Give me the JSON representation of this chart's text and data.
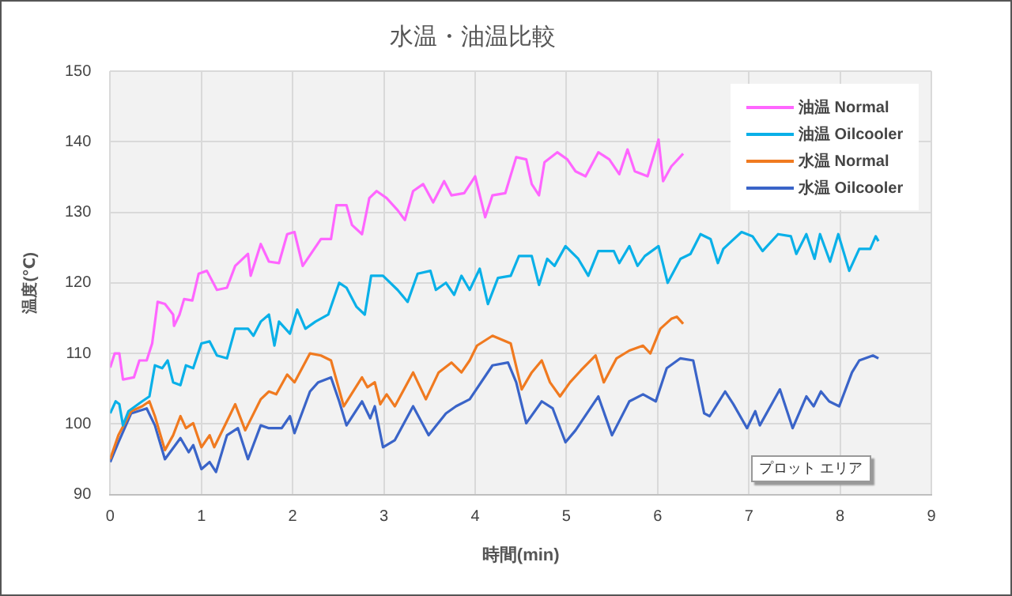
{
  "chart_data": {
    "type": "line",
    "title": "水温・油温比較",
    "xlabel": "時間(min)",
    "ylabel": "温度(℃)",
    "xlim": [
      0,
      9
    ],
    "xticks": [
      0,
      1,
      2,
      3,
      4,
      5,
      6,
      7,
      8,
      9
    ],
    "ylim": [
      90,
      150
    ],
    "yticks": [
      90,
      100,
      110,
      120,
      130,
      140,
      150
    ],
    "grid": true,
    "legend": "top right",
    "marker": "none",
    "line_style": "solid",
    "annotations": [
      "プロット エリア"
    ],
    "series": [
      {
        "name": "油温 Normal",
        "color": "#ff66ff",
        "x": [
          0,
          0.05,
          0.1,
          0.14,
          0.26,
          0.32,
          0.4,
          0.46,
          0.52,
          0.6,
          0.69,
          0.7,
          0.76,
          0.81,
          0.9,
          0.97,
          1.06,
          1.17,
          1.28,
          1.37,
          1.51,
          1.54,
          1.65,
          1.74,
          1.85,
          1.94,
          2.02,
          2.11,
          2.31,
          2.42,
          2.48,
          2.59,
          2.65,
          2.76,
          2.84,
          2.92,
          3.03,
          3.15,
          3.23,
          3.32,
          3.43,
          3.54,
          3.66,
          3.74,
          3.88,
          4.0,
          4.11,
          4.19,
          4.33,
          4.45,
          4.56,
          4.62,
          4.7,
          4.76,
          4.9,
          5.01,
          5.1,
          5.21,
          5.35,
          5.47,
          5.58,
          5.67,
          5.75,
          5.89,
          6.01,
          6.06,
          6.15,
          6.28
        ],
        "values": [
          108,
          110,
          110,
          106.3,
          106.6,
          109,
          109,
          111.4,
          117.3,
          117,
          115.5,
          113.9,
          115.5,
          117.7,
          117.5,
          121.3,
          121.7,
          119,
          119.3,
          122.4,
          124.1,
          121,
          125.5,
          123,
          122.8,
          126.9,
          127.2,
          122.4,
          126.2,
          126.2,
          131,
          131,
          128.2,
          126.9,
          132,
          133,
          132,
          130.3,
          128.9,
          133,
          134,
          131.4,
          134.4,
          132.4,
          132.7,
          135.1,
          129.3,
          132.4,
          132.7,
          137.8,
          137.5,
          134,
          132.4,
          137.1,
          138.5,
          137.5,
          135.8,
          135.1,
          138.5,
          137.5,
          135.4,
          138.9,
          135.8,
          135.1,
          140.3,
          134.4,
          136.5,
          138.3
        ]
      },
      {
        "name": "油温 Oilcooler",
        "color": "#0ab0e8",
        "x": [
          0,
          0.06,
          0.1,
          0.14,
          0.2,
          0.35,
          0.43,
          0.49,
          0.57,
          0.63,
          0.69,
          0.77,
          0.83,
          0.91,
          1.0,
          1.09,
          1.17,
          1.28,
          1.37,
          1.51,
          1.57,
          1.65,
          1.74,
          1.8,
          1.85,
          1.97,
          2.05,
          2.14,
          2.25,
          2.39,
          2.51,
          2.59,
          2.7,
          2.79,
          2.86,
          2.99,
          3.15,
          3.26,
          3.37,
          3.51,
          3.57,
          3.68,
          3.77,
          3.85,
          3.94,
          4.05,
          4.14,
          4.25,
          4.39,
          4.48,
          4.62,
          4.7,
          4.79,
          4.87,
          4.99,
          5.13,
          5.24,
          5.35,
          5.52,
          5.58,
          5.69,
          5.78,
          5.86,
          6.01,
          6.11,
          6.25,
          6.36,
          6.47,
          6.58,
          6.66,
          6.72,
          6.81,
          6.92,
          7.04,
          7.15,
          7.32,
          7.46,
          7.52,
          7.63,
          7.72,
          7.78,
          7.89,
          7.98,
          8.1,
          8.21,
          8.33,
          8.39,
          8.42
        ],
        "values": [
          101.5,
          103.2,
          102.8,
          99.8,
          101.8,
          103.2,
          103.9,
          108.3,
          107.9,
          109,
          105.9,
          105.5,
          108.3,
          107.9,
          111.4,
          111.7,
          109.7,
          109.3,
          113.5,
          113.5,
          112.5,
          114.5,
          115.5,
          111.1,
          114.5,
          112.8,
          116.2,
          113.5,
          114.5,
          115.5,
          120,
          119.3,
          116.6,
          115.5,
          121,
          121,
          119,
          117.3,
          121.3,
          121.7,
          119,
          120,
          118.3,
          121,
          119,
          122,
          117,
          120.7,
          121,
          123.8,
          123.8,
          119.7,
          123.4,
          122.4,
          125.2,
          123.4,
          121,
          124.5,
          124.5,
          122.8,
          125.2,
          122.4,
          123.8,
          125.2,
          120,
          123.4,
          124.1,
          126.9,
          126.2,
          122.8,
          124.8,
          125.9,
          127.2,
          126.6,
          124.5,
          126.9,
          126.6,
          124.1,
          126.9,
          123.4,
          126.9,
          123,
          126.9,
          121.7,
          124.8,
          124.8,
          126.6,
          125.9
        ]
      },
      {
        "name": "水温 Normal",
        "color": "#f07a20",
        "x": [
          0,
          0.09,
          0.23,
          0.35,
          0.43,
          0.49,
          0.6,
          0.69,
          0.77,
          0.83,
          0.91,
          1.0,
          1.09,
          1.14,
          1.28,
          1.37,
          1.48,
          1.65,
          1.74,
          1.82,
          1.94,
          2.02,
          2.19,
          2.31,
          2.42,
          2.56,
          2.76,
          2.82,
          2.9,
          2.96,
          3.03,
          3.12,
          3.32,
          3.46,
          3.6,
          3.74,
          3.85,
          3.94,
          4.02,
          4.19,
          4.39,
          4.51,
          4.62,
          4.73,
          4.82,
          4.93,
          5.04,
          5.16,
          5.32,
          5.41,
          5.55,
          5.69,
          5.84,
          5.92,
          6.03,
          6.15,
          6.21,
          6.28
        ],
        "values": [
          95,
          98.4,
          101.8,
          102.5,
          103.2,
          101.1,
          96.3,
          98.4,
          101.1,
          99.4,
          100.1,
          96.7,
          98.4,
          96.7,
          100.4,
          102.8,
          99.1,
          103.5,
          104.6,
          104.2,
          107,
          105.9,
          110,
          109.7,
          109,
          102.5,
          106.6,
          105.2,
          105.9,
          102.8,
          104.2,
          102.5,
          107.3,
          103.5,
          107.3,
          108.7,
          107.3,
          109,
          111.1,
          112.5,
          111.4,
          104.9,
          107.3,
          109,
          105.9,
          103.9,
          105.9,
          107.6,
          109.7,
          105.9,
          109.3,
          110.4,
          111.1,
          110,
          113.5,
          114.9,
          115.2,
          114.2
        ]
      },
      {
        "name": "水温 Oilcooler",
        "color": "#3a64c8",
        "x": [
          0,
          0.09,
          0.23,
          0.4,
          0.49,
          0.6,
          0.77,
          0.86,
          0.91,
          1.0,
          1.09,
          1.16,
          1.28,
          1.4,
          1.51,
          1.65,
          1.74,
          1.88,
          1.97,
          2.02,
          2.19,
          2.28,
          2.42,
          2.51,
          2.59,
          2.76,
          2.85,
          2.9,
          2.99,
          3.12,
          3.32,
          3.49,
          3.68,
          3.79,
          3.94,
          4.19,
          4.36,
          4.45,
          4.56,
          4.73,
          4.85,
          4.99,
          5.1,
          5.35,
          5.5,
          5.69,
          5.84,
          5.98,
          6.1,
          6.25,
          6.39,
          6.51,
          6.57,
          6.74,
          6.83,
          6.98,
          7.07,
          7.12,
          7.34,
          7.48,
          7.63,
          7.71,
          7.79,
          7.88,
          7.99,
          8.13,
          8.21,
          8.36,
          8.42
        ],
        "values": [
          94.6,
          97.4,
          101.5,
          102.2,
          99.8,
          95,
          98,
          96,
          97,
          93.6,
          94.6,
          93.2,
          98.4,
          99.4,
          95,
          99.8,
          99.4,
          99.4,
          101.1,
          98.7,
          104.6,
          105.9,
          106.6,
          103.2,
          99.8,
          103.2,
          100.8,
          102.5,
          96.7,
          97.7,
          102.5,
          98.4,
          101.5,
          102.5,
          103.5,
          108.3,
          108.7,
          105.9,
          100.1,
          103.2,
          102.2,
          97.4,
          99.1,
          103.9,
          98.4,
          103.2,
          104.2,
          103.2,
          107.9,
          109.3,
          109,
          101.5,
          101.1,
          104.6,
          102.8,
          99.4,
          101.8,
          99.8,
          104.9,
          99.4,
          103.9,
          102.5,
          104.6,
          103.2,
          102.5,
          107.3,
          109,
          109.7,
          109.3
        ]
      }
    ]
  }
}
